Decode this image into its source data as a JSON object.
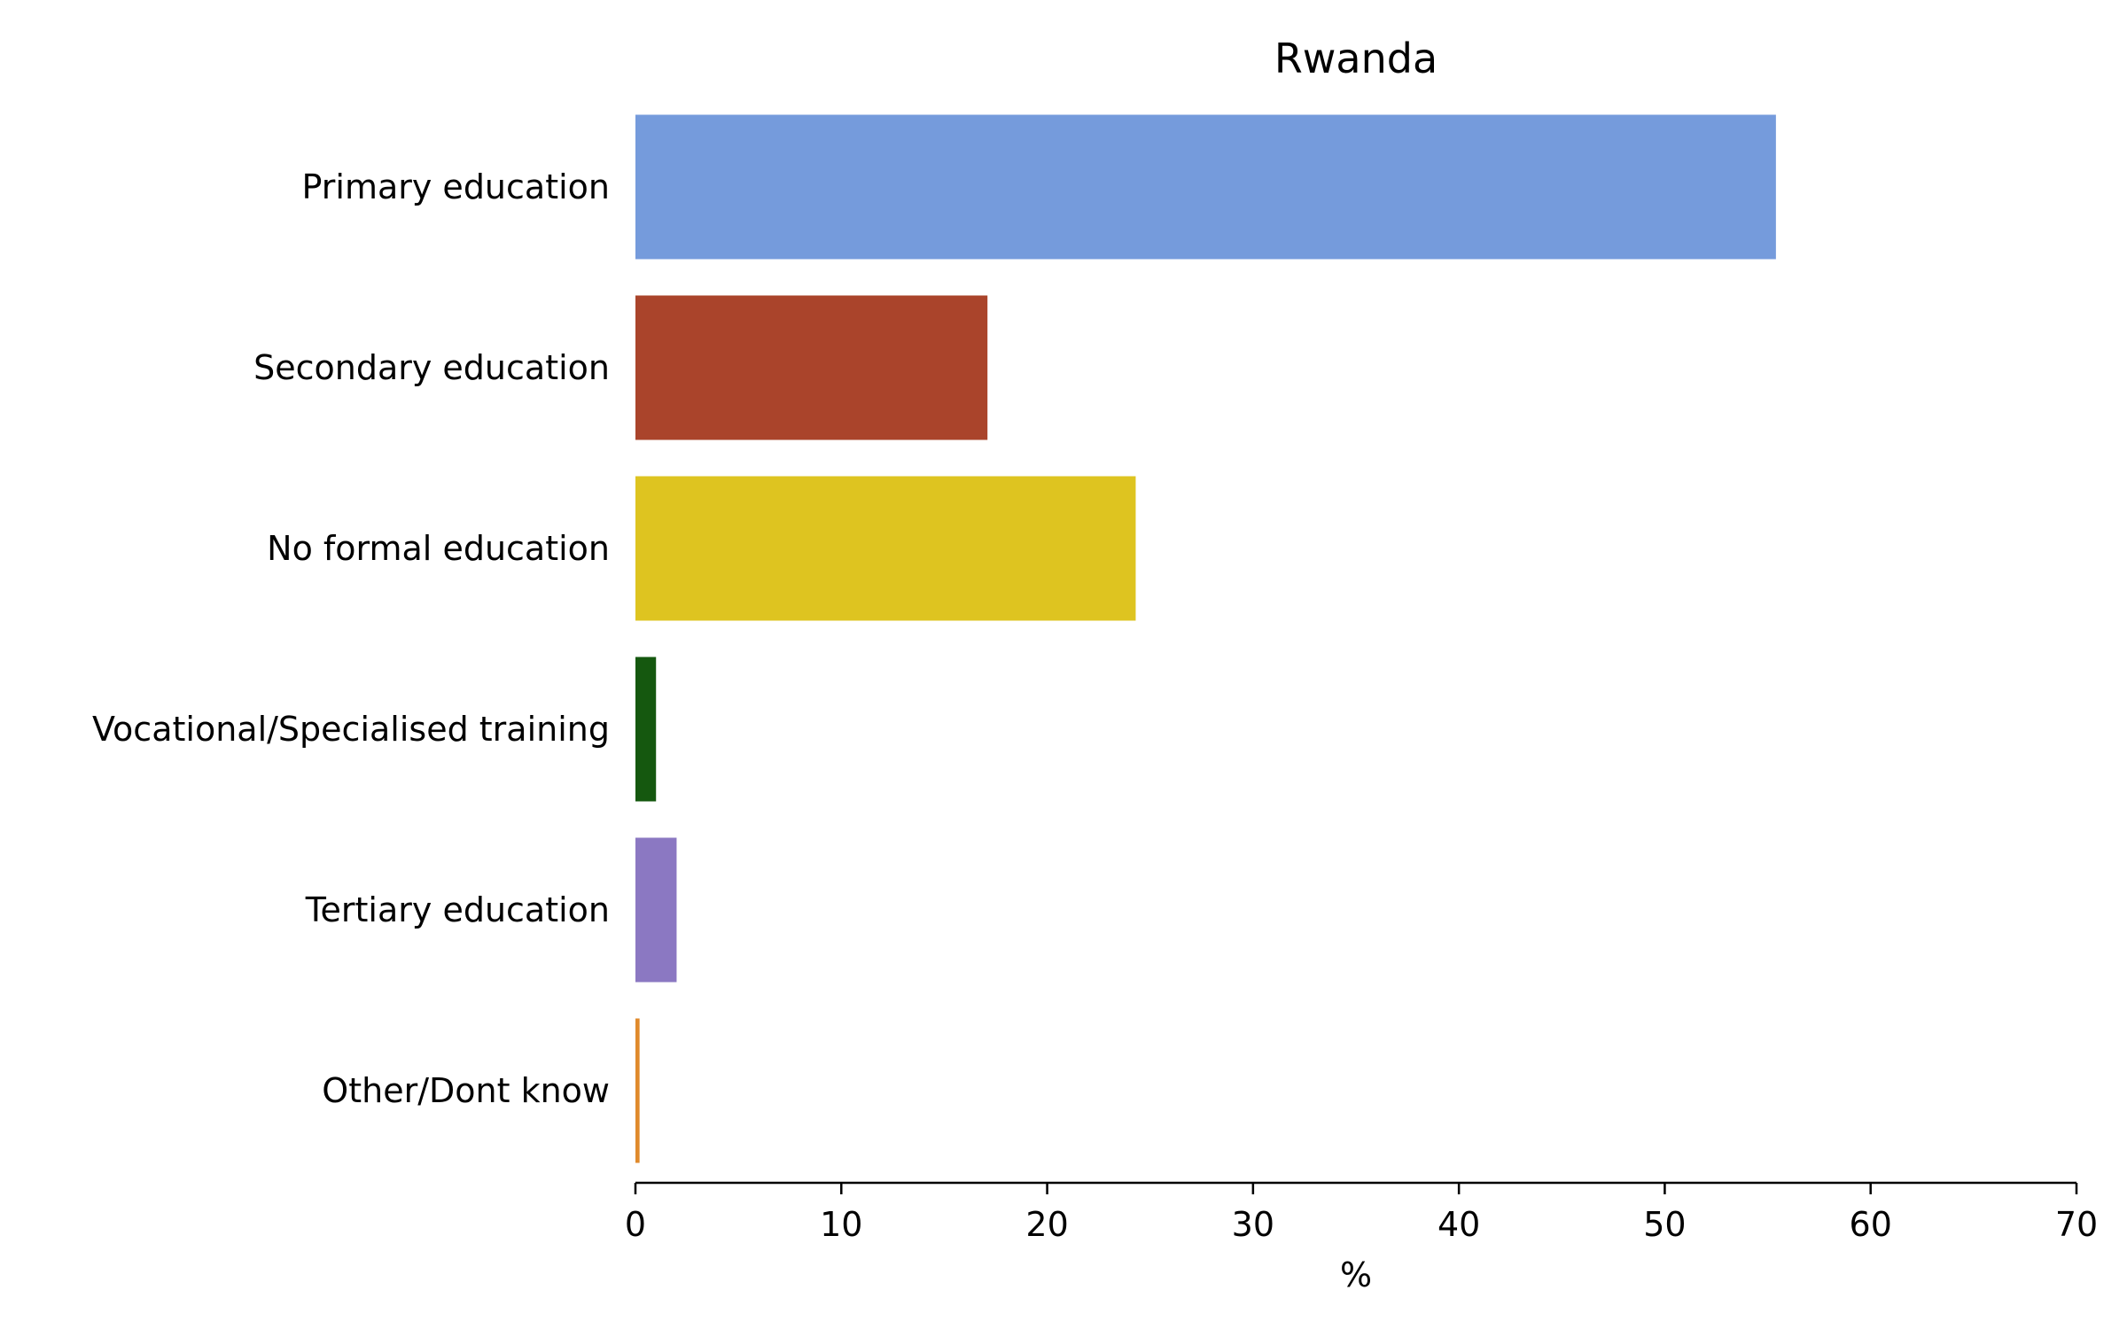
{
  "chart_data": {
    "type": "bar",
    "orientation": "horizontal",
    "title": "Rwanda",
    "xlabel": "%",
    "ylabel": "",
    "xlim": [
      0,
      70
    ],
    "x_ticks": [
      0,
      10,
      20,
      30,
      40,
      50,
      60,
      70
    ],
    "grid": false,
    "legend": "none",
    "categories": [
      "Primary education",
      "Secondary education",
      "No formal education",
      "Vocational/Specialised training",
      "Tertiary education",
      "Other/Dont know"
    ],
    "values": [
      55.4,
      17.1,
      24.3,
      1.0,
      2.0,
      0.2
    ],
    "colors": [
      "#759bdc",
      "#aa442b",
      "#dec420",
      "#15580f",
      "#8b78c2",
      "#e08a2c"
    ]
  }
}
